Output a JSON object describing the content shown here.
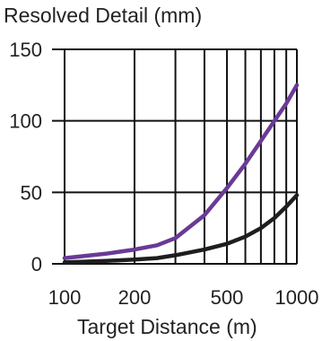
{
  "chart_data": {
    "type": "line",
    "title": "",
    "ylabel": "Resolved Detail (mm)",
    "xlabel": "Target Distance (m)",
    "x_scale": "log",
    "xlim": [
      100,
      1000
    ],
    "ylim": [
      0,
      150
    ],
    "x_ticks": [
      100,
      200,
      500,
      1000
    ],
    "x_tick_labels": [
      "100",
      "200",
      "500",
      "1000"
    ],
    "x_gridlines": [
      100,
      200,
      300,
      400,
      500,
      600,
      700,
      800,
      900,
      1000
    ],
    "y_ticks": [
      0,
      50,
      100,
      150
    ],
    "y_tick_labels": [
      "0",
      "50",
      "100",
      "150"
    ],
    "grid": true,
    "legend": "none",
    "series": [
      {
        "color": "#6a3a96",
        "x": [
          100,
          150,
          200,
          250,
          300,
          400,
          500,
          600,
          700,
          800,
          900,
          1000
        ],
        "y": [
          4,
          7,
          10,
          13,
          18,
          34,
          53,
          70,
          86,
          100,
          112,
          125
        ]
      },
      {
        "color": "#1e1e1e",
        "x": [
          100,
          150,
          200,
          250,
          300,
          400,
          500,
          600,
          700,
          800,
          900,
          1000
        ],
        "y": [
          1,
          2,
          3,
          4,
          6,
          10,
          14,
          19,
          25,
          32,
          40,
          48
        ]
      }
    ]
  }
}
